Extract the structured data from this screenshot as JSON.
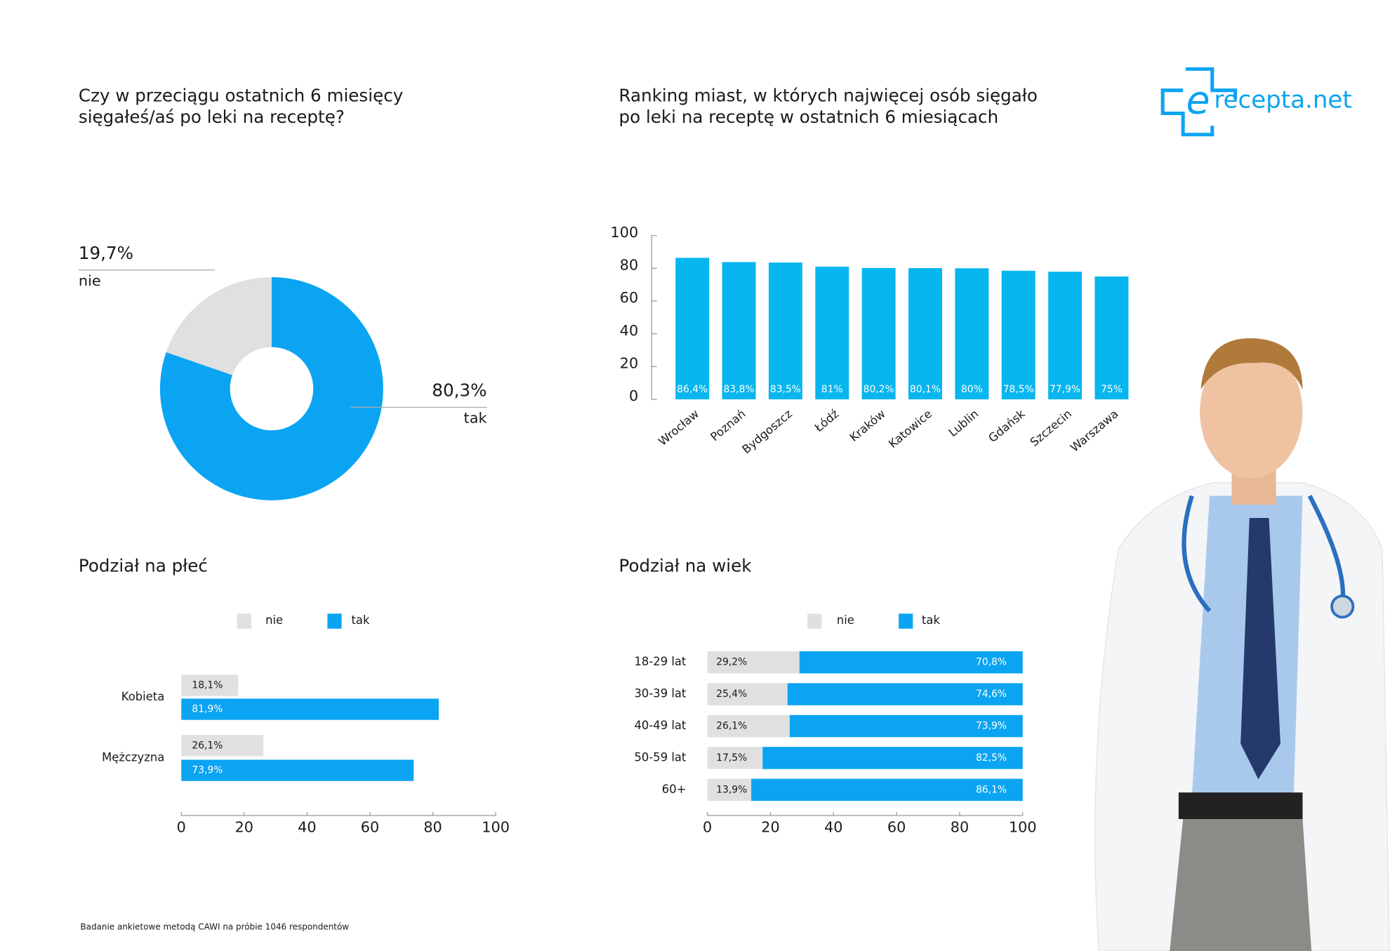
{
  "logo": {
    "mark": "e",
    "text": "recepta.net"
  },
  "footnote": "Badanie ankietowe metodą CAWI na próbie 1046  respondentów",
  "chart_data": [
    {
      "type": "pie",
      "title": [
        "Czy w przeciągu ostatnich 6 miesięcy",
        "sięgałeś/aś po leki na receptę?"
      ],
      "categories": [
        "nie",
        "tak"
      ],
      "values": [
        19.7,
        80.3
      ],
      "value_labels": [
        "19,7%",
        "80,3%"
      ],
      "colors": [
        "#e0e0e0",
        "#0aa4f2"
      ]
    },
    {
      "type": "bar",
      "title": [
        "Ranking miast, w których najwięcej osób sięgało",
        "po leki na receptę w ostatnich 6 miesiącach"
      ],
      "categories": [
        "Wrocław",
        "Poznań",
        "Bydgoszcz",
        "Łódź",
        "Kraków",
        "Katowice",
        "Lublin",
        "Gdańsk",
        "Szczecin",
        "Warszawa"
      ],
      "values": [
        86.4,
        83.8,
        83.5,
        81,
        80.2,
        80.1,
        80,
        78.5,
        77.9,
        75
      ],
      "value_labels": [
        "86,4%",
        "83,8%",
        "83,5%",
        "81%",
        "80,2%",
        "80,1%",
        "80%",
        "78,5%",
        "77,9%",
        "75%"
      ],
      "color": "#07b6ee",
      "ylim": [
        0,
        100
      ],
      "yticks": [
        0,
        20,
        40,
        60,
        80,
        100
      ]
    },
    {
      "type": "hbar_grouped",
      "title": "Podział na płeć",
      "categories": [
        "Kobieta",
        "Mężczyzna"
      ],
      "series": [
        {
          "name": "nie",
          "color": "#e0e0e0",
          "values": [
            18.1,
            26.1
          ],
          "value_labels": [
            "18,1%",
            "26,1%"
          ]
        },
        {
          "name": "tak",
          "color": "#0aa4f2",
          "values": [
            81.9,
            73.9
          ],
          "value_labels": [
            "81,9%",
            "73,9%"
          ]
        }
      ],
      "xlim": [
        0,
        100
      ],
      "xticks": [
        0,
        20,
        40,
        60,
        80,
        100
      ]
    },
    {
      "type": "hbar_stacked",
      "title": "Podział na wiek",
      "categories": [
        "18-29 lat",
        "30-39 lat",
        "40-49 lat",
        "50-59 lat",
        "60+"
      ],
      "series": [
        {
          "name": "nie",
          "color": "#e0e0e0",
          "values": [
            29.2,
            25.4,
            26.1,
            17.5,
            13.9
          ],
          "value_labels": [
            "29,2%",
            "25,4%",
            "26,1%",
            "17,5%",
            "13,9%"
          ]
        },
        {
          "name": "tak",
          "color": "#0aa4f2",
          "values": [
            70.8,
            74.6,
            73.9,
            82.5,
            86.1
          ],
          "value_labels": [
            "70,8%",
            "74,6%",
            "73,9%",
            "82,5%",
            "86,1%"
          ]
        }
      ],
      "xlim": [
        0,
        100
      ],
      "xticks": [
        0,
        20,
        40,
        60,
        80,
        100
      ]
    }
  ]
}
